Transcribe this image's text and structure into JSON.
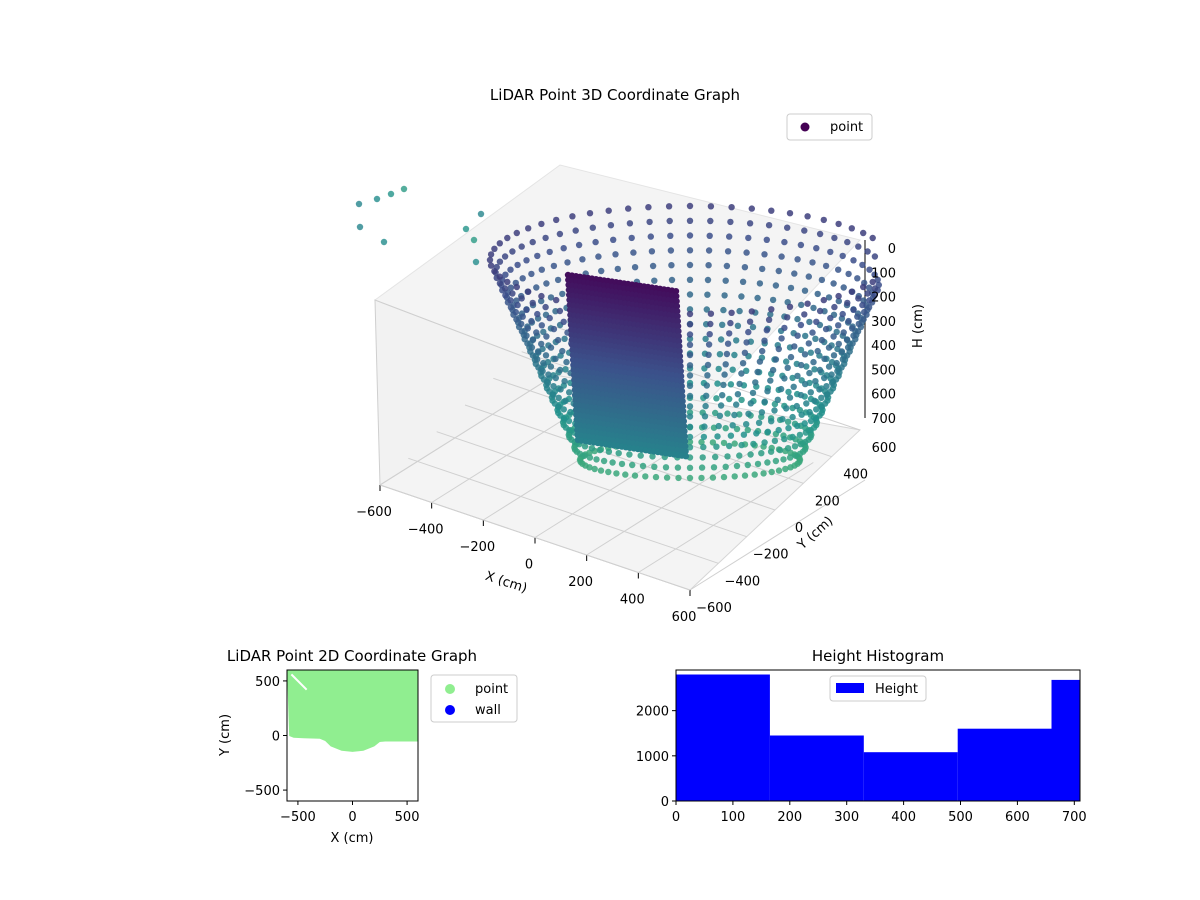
{
  "chart_data": [
    {
      "type": "scatter3d",
      "title": "LiDAR Point 3D Coordinate Graph",
      "xlabel": "X (cm)",
      "ylabel": "Y (cm)",
      "zlabel": "H (cm)",
      "xlim": [
        -600,
        600
      ],
      "ylim": [
        -600,
        600
      ],
      "zlim": [
        0,
        700
      ],
      "z_inverted": true,
      "x_ticks": [
        "−600",
        "−400",
        "−200",
        "0",
        "200",
        "400",
        "600"
      ],
      "y_ticks": [
        "−600",
        "−400",
        "−200",
        "0",
        "200",
        "400",
        "600"
      ],
      "z_ticks": [
        "0",
        "100",
        "200",
        "300",
        "400",
        "500",
        "600",
        "700"
      ],
      "legend": [
        "point"
      ],
      "legend_position": "top-right",
      "colormap": "viridis",
      "colors": {
        "dark": "#440154",
        "mid": "#3b528b",
        "teal": "#21918c",
        "light": "#5ec962"
      },
      "series": [
        {
          "name": "point",
          "description_values": [
            {
              "x": -560,
              "y": 500,
              "h": 120
            },
            {
              "x": -520,
              "y": 520,
              "h": 110
            },
            {
              "x": -480,
              "y": 540,
              "h": 100
            },
            {
              "x": -440,
              "y": 560,
              "h": 95
            },
            {
              "x": -560,
              "y": 460,
              "h": 180
            },
            {
              "x": -480,
              "y": 470,
              "h": 200
            },
            {
              "x": -220,
              "y": 520,
              "h": 150
            },
            {
              "x": -200,
              "y": 480,
              "h": 200
            }
          ]
        }
      ]
    },
    {
      "type": "scatter",
      "title": "LiDAR Point 2D Coordinate Graph",
      "xlabel": "X (cm)",
      "ylabel": "Y (cm)",
      "xlim": [
        -600,
        600
      ],
      "ylim": [
        -600,
        600
      ],
      "x_ticks": [
        "−500",
        "0",
        "500"
      ],
      "y_ticks": [
        "−500",
        "0",
        "500"
      ],
      "legend": [
        "point",
        "wall"
      ],
      "legend_position": "outside right",
      "series": [
        {
          "name": "point",
          "color": "#90ee90",
          "boundary": [
            {
              "x": -580,
              "y": -5
            },
            {
              "x": -540,
              "y": -20
            },
            {
              "x": -450,
              "y": -25
            },
            {
              "x": -300,
              "y": -30
            },
            {
              "x": -250,
              "y": -50
            },
            {
              "x": -200,
              "y": -100
            },
            {
              "x": -100,
              "y": -140
            },
            {
              "x": 0,
              "y": -150
            },
            {
              "x": 100,
              "y": -140
            },
            {
              "x": 200,
              "y": -100
            },
            {
              "x": 250,
              "y": -60
            },
            {
              "x": 300,
              "y": -55
            },
            {
              "x": 600,
              "y": -55
            },
            {
              "x": 600,
              "y": 600
            },
            {
              "x": -600,
              "y": 600
            }
          ]
        },
        {
          "name": "wall",
          "color": "#0000ff",
          "values": []
        }
      ]
    },
    {
      "type": "bar",
      "title": "Height Histogram",
      "xlabel": "",
      "ylabel": "",
      "legend": [
        "Height"
      ],
      "legend_position": "top-center",
      "color": "#0000ff",
      "xlim": [
        0,
        710
      ],
      "ylim": [
        0,
        2900
      ],
      "x_ticks": [
        "0",
        "100",
        "200",
        "300",
        "400",
        "500",
        "600",
        "700"
      ],
      "y_ticks": [
        "0",
        "1000",
        "2000"
      ],
      "bins": [
        {
          "x0": 0,
          "x1": 165,
          "count": 2800
        },
        {
          "x0": 165,
          "x1": 330,
          "count": 1450
        },
        {
          "x0": 330,
          "x1": 495,
          "count": 1080
        },
        {
          "x0": 495,
          "x1": 660,
          "count": 1600
        },
        {
          "x0": 660,
          "x1": 710,
          "count": 2680
        }
      ]
    }
  ]
}
